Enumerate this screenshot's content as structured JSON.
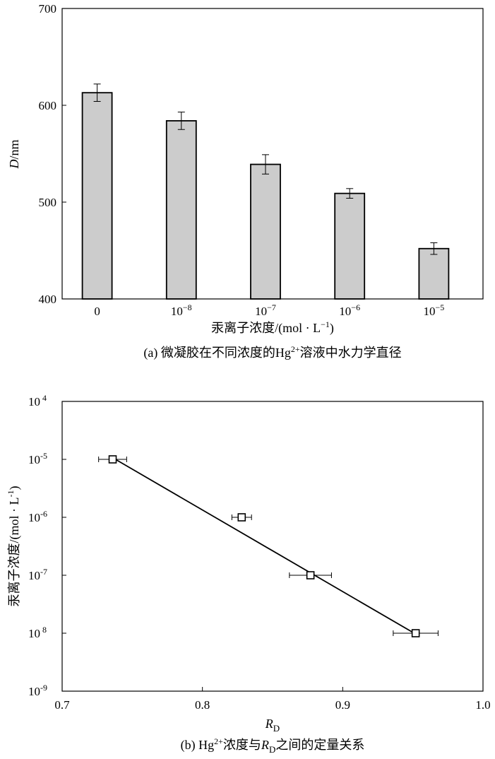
{
  "chart_data": [
    {
      "type": "bar",
      "categories": [
        "0",
        "10",
        "10",
        "10",
        "10"
      ],
      "category_exponents": [
        "",
        "−8",
        "−7",
        "−6",
        "−5"
      ],
      "values": [
        613,
        584,
        539,
        509,
        452
      ],
      "errors": [
        9,
        9,
        10,
        5,
        6
      ],
      "ylim": [
        400,
        700
      ],
      "y_ticks": [
        "400",
        "500",
        "600",
        "700"
      ],
      "y_tick_values": [
        400,
        500,
        600,
        700
      ],
      "ylabel_italic": "D",
      "ylabel_rest": "/nm",
      "xlabel": "汞离子浓度/(mol · L",
      "xlabel_sup": "−1",
      "xlabel_end": ")",
      "caption_a": "(a) 微凝胶在不同浓度的Hg",
      "caption_sup": "2+",
      "caption_b": "溶液中水力学直径",
      "bar_color": "#cccccc"
    },
    {
      "type": "scatter",
      "x": [
        0.736,
        0.828,
        0.877,
        0.952
      ],
      "y": [
        1e-05,
        1e-06,
        1e-07,
        1e-08
      ],
      "xerr": [
        0.01,
        0.007,
        0.015,
        0.016
      ],
      "fit_line": {
        "x": [
          0.738,
          0.951
        ],
        "y": [
          1e-05,
          1e-08
        ]
      },
      "xlim": [
        0.7,
        1.0
      ],
      "ylim": [
        1e-09,
        0.0001
      ],
      "y_scale": "log",
      "x_ticks": [
        "0.7",
        "0.8",
        "0.9",
        "1.0"
      ],
      "x_tick_values": [
        0.7,
        0.8,
        0.9,
        1.0
      ],
      "y_ticks": [
        {
          "base": "10",
          "exp": " 4"
        },
        {
          "base": "10",
          "exp": "-5"
        },
        {
          "base": "10",
          "exp": "-6"
        },
        {
          "base": "10",
          "exp": "-7"
        },
        {
          "base": "10",
          "exp": " 8"
        },
        {
          "base": "10",
          "exp": "-9"
        }
      ],
      "y_tick_exps": [
        -4,
        -5,
        -6,
        -7,
        -8,
        -9
      ],
      "xlabel_italic": "R",
      "xlabel_sub": "D",
      "ylabel": "汞离子浓度/(mol · L",
      "ylabel_sup": "-1",
      "ylabel_end": ")",
      "caption_a": "(b) Hg",
      "caption_sup": "2+",
      "caption_b": "浓度与",
      "caption_italic": "R",
      "caption_sub": "D",
      "caption_c": "之间的定量关系"
    }
  ]
}
